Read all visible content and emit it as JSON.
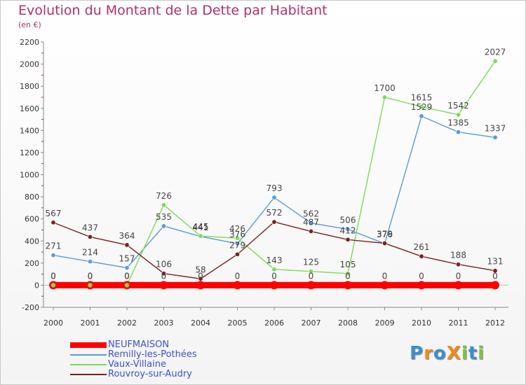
{
  "title": "Evolution du Montant de la Dette par Habitant",
  "unit": "(en €)",
  "brand": "ProXiti",
  "chart_data": {
    "type": "line",
    "title": "Evolution du Montant de la Dette par Habitant",
    "ylabel": "(en €)",
    "x": [
      "2000",
      "2001",
      "2002",
      "2003",
      "2004",
      "2005",
      "2006",
      "2007",
      "2008",
      "2009",
      "2010",
      "2011",
      "2012"
    ],
    "ylim": [
      -200,
      2200
    ],
    "yticks": [
      "-200",
      "0",
      "200",
      "400",
      "600",
      "800",
      "1000",
      "1200",
      "1400",
      "1600",
      "1800",
      "2000",
      "2200"
    ],
    "grid": false,
    "legend_position": "bottom-left",
    "series": [
      {
        "name": "NEUFMAISON",
        "color": "#ff0000",
        "values": [
          0,
          0,
          0,
          0,
          0,
          0,
          0,
          0,
          0,
          0,
          0,
          0,
          0
        ],
        "labels": [
          "0",
          "0",
          "0",
          "0",
          "0",
          "0",
          "0",
          "0",
          "0",
          "0",
          "0",
          "0",
          "0"
        ]
      },
      {
        "name": "Remilly-les-Pothées",
        "color": "#5a9bd5",
        "values": [
          271,
          214,
          157,
          535,
          441,
          376,
          793,
          562,
          506,
          376,
          1529,
          1385,
          1337
        ],
        "labels": [
          "271",
          "214",
          "157",
          "535",
          "441",
          "376",
          "793",
          "562",
          "506",
          "376",
          "1529",
          "1385",
          "1337"
        ]
      },
      {
        "name": "Vaux-Villaine",
        "color": "#7ed957",
        "values": [
          0,
          0,
          0,
          726,
          445,
          426,
          143,
          125,
          105,
          1700,
          1615,
          1542,
          2027
        ],
        "labels": [
          "0",
          "0",
          "0",
          "726",
          "445",
          "426",
          "143",
          "125",
          "105",
          "1700",
          "1615",
          "1542",
          "2027"
        ]
      },
      {
        "name": "Rouvroy-sur-Audry",
        "color": "#7a2020",
        "values": [
          567,
          437,
          364,
          106,
          58,
          279,
          572,
          487,
          412,
          379,
          261,
          188,
          131
        ],
        "labels": [
          "567",
          "437",
          "364",
          "106",
          "58",
          "279",
          "572",
          "487",
          "412",
          "379",
          "261",
          "188",
          "131"
        ]
      }
    ]
  }
}
